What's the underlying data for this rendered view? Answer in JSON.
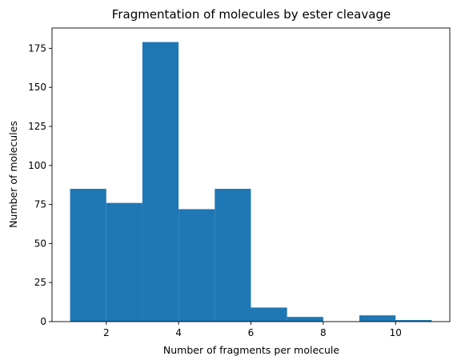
{
  "chart_data": {
    "type": "bar",
    "title": "Fragmentation of molecules by ester cleavage",
    "xlabel": "Number of fragments per molecule",
    "ylabel": "Number of molecules",
    "bin_edges": [
      1,
      2,
      3,
      4,
      5,
      6,
      7,
      8,
      9,
      10,
      11
    ],
    "values": [
      85,
      76,
      179,
      72,
      85,
      9,
      3,
      0,
      4,
      1
    ],
    "xlim": [
      0.5,
      11.5
    ],
    "ylim": [
      0,
      188
    ],
    "xticks": [
      2,
      4,
      6,
      8,
      10
    ],
    "yticks": [
      0,
      25,
      50,
      75,
      100,
      125,
      150,
      175
    ],
    "bar_color": "#1f77b4",
    "grid": false,
    "legend": "none"
  }
}
